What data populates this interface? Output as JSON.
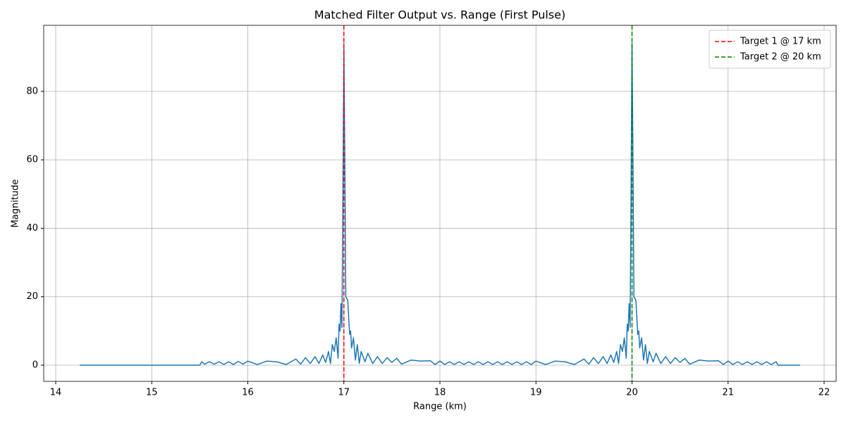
{
  "chart_data": {
    "type": "line",
    "title": "Matched Filter Output vs. Range (First Pulse)",
    "x_label": "Range (km)",
    "y_label": "Magnitude",
    "color": "#1f77b4",
    "x": [
      14.25,
      15.5,
      15.52,
      15.55,
      15.6,
      15.65,
      15.7,
      15.75,
      15.8,
      15.85,
      15.9,
      15.95,
      16.0,
      16.1,
      16.2,
      16.3,
      16.4,
      16.5,
      16.55,
      16.6,
      16.65,
      16.7,
      16.74,
      16.78,
      16.81,
      16.84,
      16.86,
      16.88,
      16.9,
      16.92,
      16.94,
      16.95,
      16.96,
      16.97,
      16.98,
      16.99,
      17.0,
      17.01,
      17.02,
      17.04,
      17.06,
      17.07,
      17.08,
      17.1,
      17.12,
      17.14,
      17.16,
      17.18,
      17.22,
      17.25,
      17.3,
      17.35,
      17.4,
      17.45,
      17.5,
      17.55,
      17.6,
      17.7,
      17.8,
      17.9,
      17.95,
      18.0,
      18.05,
      18.1,
      18.15,
      18.2,
      18.25,
      18.3,
      18.35,
      18.4,
      18.45,
      18.5,
      18.55,
      18.6,
      18.65,
      18.7,
      18.75,
      18.8,
      18.85,
      18.9,
      18.95,
      19.0,
      19.1,
      19.2,
      19.3,
      19.4,
      19.5,
      19.55,
      19.6,
      19.65,
      19.7,
      19.74,
      19.78,
      19.81,
      19.84,
      19.86,
      19.88,
      19.9,
      19.92,
      19.94,
      19.95,
      19.96,
      19.97,
      19.98,
      19.99,
      20.0,
      20.01,
      20.02,
      20.04,
      20.06,
      20.07,
      20.08,
      20.1,
      20.12,
      20.14,
      20.16,
      20.18,
      20.22,
      20.25,
      20.3,
      20.35,
      20.4,
      20.45,
      20.5,
      20.55,
      20.6,
      20.7,
      20.8,
      20.9,
      20.95,
      21.0,
      21.05,
      21.1,
      21.15,
      21.2,
      21.25,
      21.3,
      21.35,
      21.4,
      21.45,
      21.5,
      21.52,
      21.75
    ],
    "values": [
      0,
      0,
      1,
      0.3,
      1,
      0.3,
      1,
      0.2,
      1,
      0.2,
      1.1,
      0.3,
      1.2,
      0.2,
      1.2,
      1.0,
      0.2,
      1.8,
      0.3,
      2.2,
      0.5,
      2.5,
      0.5,
      3,
      0.8,
      4,
      0.5,
      6,
      4,
      8,
      2,
      12,
      10,
      18,
      11,
      50,
      94,
      60,
      20,
      19,
      9,
      10,
      5,
      8,
      1.5,
      6,
      0.5,
      4,
      1,
      3.5,
      0.5,
      2.5,
      0.5,
      2.2,
      0.8,
      2,
      0.3,
      1.5,
      1.2,
      1.3,
      0.2,
      1.2,
      0.2,
      1,
      0.2,
      1,
      0.2,
      1,
      0.2,
      1,
      0.2,
      1,
      0.2,
      1,
      0.2,
      1,
      0.2,
      1,
      0.2,
      1,
      0.2,
      1.2,
      0.2,
      1.2,
      1.0,
      0.2,
      1.8,
      0.3,
      2.2,
      0.5,
      2.5,
      0.5,
      3,
      0.8,
      4,
      0.5,
      6,
      4,
      8,
      2,
      12,
      10,
      18,
      11,
      50,
      94,
      60,
      20,
      19,
      9,
      10,
      5,
      8,
      1.5,
      6,
      0.5,
      4,
      1,
      3.5,
      0.5,
      2.5,
      0.5,
      2.2,
      0.8,
      2,
      0.3,
      1.5,
      1.2,
      1.3,
      0.2,
      1.2,
      0.2,
      1,
      0.2,
      1,
      0.2,
      1,
      0.2,
      1,
      0.2,
      1,
      0,
      0
    ],
    "vlines": [
      {
        "name": "Target 1 @ 17 km",
        "color": "#ff0000",
        "x": 17
      },
      {
        "name": "Target 2 @ 20 km",
        "color": "#008000",
        "x": 20
      }
    ],
    "xlim": [
      13.875,
      22.125
    ],
    "xticks": [
      14,
      15,
      16,
      17,
      18,
      19,
      20,
      21,
      22
    ],
    "ylim": [
      -4.73,
      99.3
    ],
    "yticks": [
      0,
      20,
      40,
      60,
      80
    ],
    "grid": true,
    "legend": "upper right"
  }
}
